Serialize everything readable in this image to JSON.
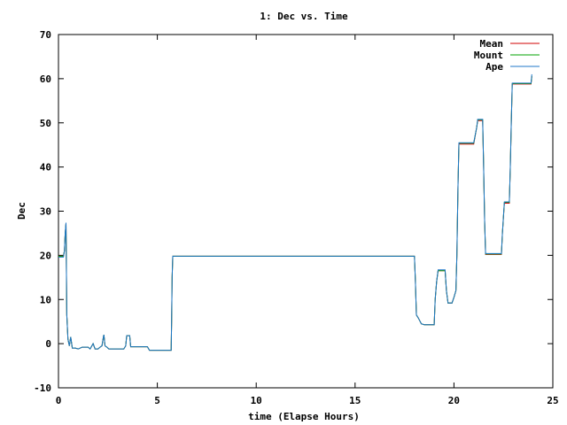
{
  "chart_data": {
    "type": "line",
    "title": "1: Dec vs. Time",
    "xlabel": "time (Elapse Hours)",
    "ylabel": "Dec",
    "xlim": [
      0,
      25
    ],
    "ylim": [
      -10,
      70
    ],
    "xticks": [
      0,
      5,
      10,
      15,
      20,
      25
    ],
    "yticks": [
      -10,
      0,
      10,
      20,
      30,
      40,
      50,
      60,
      70
    ],
    "grid": false,
    "legend_position": "top-right",
    "series": [
      {
        "name": "Mean",
        "color": "#d00000",
        "points": [
          [
            0,
            19.8
          ],
          [
            0.25,
            19.8
          ],
          [
            0.3,
            21
          ],
          [
            0.34,
            25
          ],
          [
            0.38,
            27.2
          ],
          [
            0.42,
            6.5
          ],
          [
            0.48,
            1
          ],
          [
            0.55,
            -0.5
          ],
          [
            0.62,
            1.5
          ],
          [
            0.7,
            -1
          ],
          [
            0.85,
            -1
          ],
          [
            1.0,
            -1.2
          ],
          [
            1.2,
            -0.8
          ],
          [
            1.5,
            -0.8
          ],
          [
            1.6,
            -1.2
          ],
          [
            1.75,
            0
          ],
          [
            1.85,
            -1.2
          ],
          [
            2.0,
            -1.2
          ],
          [
            2.1,
            -0.8
          ],
          [
            2.2,
            -0.5
          ],
          [
            2.27,
            1.5
          ],
          [
            2.3,
            2
          ],
          [
            2.35,
            -0.5
          ],
          [
            2.45,
            -0.8
          ],
          [
            2.55,
            -1.2
          ],
          [
            2.7,
            -1.2
          ],
          [
            3.0,
            -1.2
          ],
          [
            3.3,
            -1.2
          ],
          [
            3.4,
            -0.5
          ],
          [
            3.45,
            1.8
          ],
          [
            3.6,
            1.8
          ],
          [
            3.65,
            -0.7
          ],
          [
            4.0,
            -0.7
          ],
          [
            4.5,
            -0.7
          ],
          [
            4.6,
            -1.5
          ],
          [
            5.0,
            -1.5
          ],
          [
            5.7,
            -1.5
          ],
          [
            5.72,
            5
          ],
          [
            5.75,
            15
          ],
          [
            5.78,
            19.8
          ],
          [
            10,
            19.8
          ],
          [
            15,
            19.8
          ],
          [
            18.0,
            19.8
          ],
          [
            18.05,
            14
          ],
          [
            18.1,
            6.5
          ],
          [
            18.2,
            5.8
          ],
          [
            18.35,
            4.5
          ],
          [
            18.5,
            4.3
          ],
          [
            19.0,
            4.3
          ],
          [
            19.05,
            10
          ],
          [
            19.12,
            14
          ],
          [
            19.2,
            16.5
          ],
          [
            19.55,
            16.5
          ],
          [
            19.62,
            12
          ],
          [
            19.7,
            9.2
          ],
          [
            19.9,
            9.2
          ],
          [
            20.0,
            10.5
          ],
          [
            20.1,
            12
          ],
          [
            20.15,
            20
          ],
          [
            20.2,
            35
          ],
          [
            20.25,
            45.2
          ],
          [
            21.0,
            45.2
          ],
          [
            21.15,
            49
          ],
          [
            21.2,
            50.5
          ],
          [
            21.45,
            50.5
          ],
          [
            21.5,
            40
          ],
          [
            21.55,
            28
          ],
          [
            21.6,
            20.2
          ],
          [
            22.4,
            20.2
          ],
          [
            22.45,
            25
          ],
          [
            22.55,
            31.8
          ],
          [
            22.8,
            31.8
          ],
          [
            22.85,
            40
          ],
          [
            22.9,
            50
          ],
          [
            22.95,
            58.8
          ],
          [
            23.9,
            58.8
          ],
          [
            23.94,
            60.5
          ]
        ]
      },
      {
        "name": "Mount",
        "color": "#00a000",
        "points": [
          [
            0,
            19.8
          ],
          [
            0.25,
            19.8
          ],
          [
            0.3,
            21
          ],
          [
            0.34,
            25
          ],
          [
            0.38,
            27.2
          ],
          [
            0.42,
            6.5
          ],
          [
            0.48,
            1
          ],
          [
            0.55,
            -0.5
          ],
          [
            0.62,
            1.5
          ],
          [
            0.7,
            -1
          ],
          [
            0.85,
            -1
          ],
          [
            1.0,
            -1.2
          ],
          [
            1.2,
            -0.8
          ],
          [
            1.5,
            -0.8
          ],
          [
            1.6,
            -1.2
          ],
          [
            1.75,
            0
          ],
          [
            1.85,
            -1.2
          ],
          [
            2.0,
            -1.2
          ],
          [
            2.1,
            -0.8
          ],
          [
            2.2,
            -0.5
          ],
          [
            2.27,
            1.5
          ],
          [
            2.3,
            2
          ],
          [
            2.35,
            -0.5
          ],
          [
            2.45,
            -0.8
          ],
          [
            2.55,
            -1.2
          ],
          [
            2.7,
            -1.2
          ],
          [
            3.0,
            -1.2
          ],
          [
            3.3,
            -1.2
          ],
          [
            3.4,
            -0.5
          ],
          [
            3.45,
            1.8
          ],
          [
            3.6,
            1.8
          ],
          [
            3.65,
            -0.7
          ],
          [
            4.0,
            -0.7
          ],
          [
            4.5,
            -0.7
          ],
          [
            4.6,
            -1.5
          ],
          [
            5.0,
            -1.5
          ],
          [
            5.7,
            -1.5
          ],
          [
            5.72,
            5
          ],
          [
            5.75,
            15
          ],
          [
            5.78,
            19.8
          ],
          [
            10,
            19.8
          ],
          [
            15,
            19.8
          ],
          [
            18.0,
            19.8
          ],
          [
            18.05,
            14
          ],
          [
            18.1,
            6.5
          ],
          [
            18.2,
            5.8
          ],
          [
            18.35,
            4.5
          ],
          [
            18.5,
            4.3
          ],
          [
            19.0,
            4.3
          ],
          [
            19.05,
            10
          ],
          [
            19.12,
            14
          ],
          [
            19.2,
            16.5
          ],
          [
            19.55,
            16.5
          ],
          [
            19.62,
            12
          ],
          [
            19.7,
            9.2
          ],
          [
            19.9,
            9.2
          ],
          [
            20.0,
            10.5
          ],
          [
            20.1,
            12
          ],
          [
            20.15,
            20
          ],
          [
            20.2,
            35
          ],
          [
            20.25,
            45.4
          ],
          [
            21.0,
            45.4
          ],
          [
            21.15,
            49
          ],
          [
            21.2,
            50.7
          ],
          [
            21.45,
            50.7
          ],
          [
            21.5,
            40
          ],
          [
            21.55,
            28
          ],
          [
            21.6,
            20.3
          ],
          [
            22.4,
            20.3
          ],
          [
            22.45,
            25
          ],
          [
            22.55,
            32
          ],
          [
            22.8,
            32
          ],
          [
            22.85,
            40
          ],
          [
            22.9,
            50
          ],
          [
            22.95,
            58.9
          ],
          [
            23.9,
            58.9
          ],
          [
            23.94,
            60.6
          ]
        ]
      },
      {
        "name": "Ape",
        "color": "#1f77c8",
        "points": [
          [
            0,
            19.6
          ],
          [
            0.25,
            19.6
          ],
          [
            0.3,
            21
          ],
          [
            0.34,
            25
          ],
          [
            0.38,
            27.4
          ],
          [
            0.42,
            6.5
          ],
          [
            0.48,
            1
          ],
          [
            0.55,
            -0.5
          ],
          [
            0.62,
            1.5
          ],
          [
            0.7,
            -1
          ],
          [
            0.85,
            -1
          ],
          [
            1.0,
            -1.2
          ],
          [
            1.2,
            -0.8
          ],
          [
            1.5,
            -0.8
          ],
          [
            1.6,
            -1.2
          ],
          [
            1.75,
            0
          ],
          [
            1.85,
            -1.2
          ],
          [
            2.0,
            -1.2
          ],
          [
            2.1,
            -0.8
          ],
          [
            2.2,
            -0.5
          ],
          [
            2.27,
            1.5
          ],
          [
            2.3,
            2
          ],
          [
            2.35,
            -0.5
          ],
          [
            2.45,
            -0.8
          ],
          [
            2.55,
            -1.2
          ],
          [
            2.7,
            -1.2
          ],
          [
            3.0,
            -1.2
          ],
          [
            3.3,
            -1.2
          ],
          [
            3.4,
            -0.5
          ],
          [
            3.45,
            1.8
          ],
          [
            3.6,
            1.8
          ],
          [
            3.65,
            -0.7
          ],
          [
            4.0,
            -0.7
          ],
          [
            4.5,
            -0.7
          ],
          [
            4.6,
            -1.5
          ],
          [
            5.0,
            -1.5
          ],
          [
            5.7,
            -1.5
          ],
          [
            5.72,
            5
          ],
          [
            5.75,
            15
          ],
          [
            5.78,
            19.8
          ],
          [
            10,
            19.8
          ],
          [
            15,
            19.8
          ],
          [
            18.0,
            19.8
          ],
          [
            18.05,
            14
          ],
          [
            18.1,
            6.5
          ],
          [
            18.2,
            5.8
          ],
          [
            18.35,
            4.5
          ],
          [
            18.5,
            4.3
          ],
          [
            19.0,
            4.3
          ],
          [
            19.05,
            10
          ],
          [
            19.12,
            14
          ],
          [
            19.2,
            16.7
          ],
          [
            19.55,
            16.7
          ],
          [
            19.62,
            12
          ],
          [
            19.7,
            9.2
          ],
          [
            19.9,
            9.2
          ],
          [
            20.0,
            10.5
          ],
          [
            20.1,
            12
          ],
          [
            20.15,
            20
          ],
          [
            20.2,
            35
          ],
          [
            20.25,
            45.5
          ],
          [
            21.0,
            45.5
          ],
          [
            21.15,
            49
          ],
          [
            21.2,
            50.8
          ],
          [
            21.45,
            50.8
          ],
          [
            21.5,
            40
          ],
          [
            21.55,
            28
          ],
          [
            21.6,
            20.4
          ],
          [
            22.4,
            20.4
          ],
          [
            22.45,
            25
          ],
          [
            22.55,
            32.1
          ],
          [
            22.8,
            32.1
          ],
          [
            22.85,
            40
          ],
          [
            22.9,
            50
          ],
          [
            22.95,
            59
          ],
          [
            23.9,
            59
          ],
          [
            23.94,
            61
          ]
        ]
      }
    ]
  }
}
